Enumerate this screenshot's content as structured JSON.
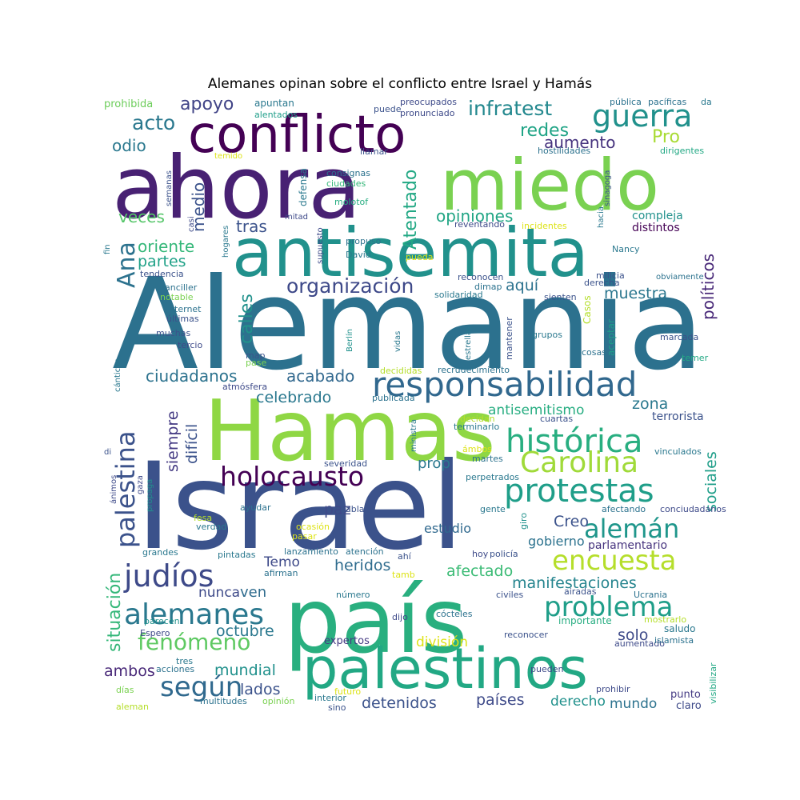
{
  "title": "Alemanes opinan sobre el conflicto entre Israel y Hamás",
  "words": [
    {
      "text": "Alemania",
      "color": "#2c718e"
    },
    {
      "text": "Israel",
      "color": "#3b528b"
    },
    {
      "text": "Hamas",
      "color": "#8fd744"
    },
    {
      "text": "país",
      "color": "#29af7f"
    },
    {
      "text": "ahora",
      "color": "#482173"
    },
    {
      "text": "miedo",
      "color": "#7ad151"
    },
    {
      "text": "antisemita",
      "color": "#21918c"
    },
    {
      "text": "conflicto",
      "color": "#440154"
    },
    {
      "text": "palestinos",
      "color": "#22a884"
    },
    {
      "text": "responsabilidad",
      "color": "#31688e"
    },
    {
      "text": "histórica",
      "color": "#28ae80"
    },
    {
      "text": "protestas",
      "color": "#1f9e89"
    },
    {
      "text": "Carolina",
      "color": "#a0da39"
    },
    {
      "text": "holocausto",
      "color": "#440154"
    },
    {
      "text": "judíos",
      "color": "#3e4a89"
    },
    {
      "text": "palestina",
      "color": "#3b528b"
    },
    {
      "text": "guerra",
      "color": "#21918c"
    },
    {
      "text": "alemanes",
      "color": "#2a788e"
    },
    {
      "text": "problema",
      "color": "#1f9e89"
    },
    {
      "text": "encuesta",
      "color": "#b5de2b"
    },
    {
      "text": "alemán",
      "color": "#1f968b"
    },
    {
      "text": "según",
      "color": "#30698e"
    },
    {
      "text": "fenómeno",
      "color": "#5ec962"
    },
    {
      "text": "organización",
      "color": "#3e4989"
    },
    {
      "text": "Ana",
      "color": "#2c728e"
    },
    {
      "text": "infratest",
      "color": "#23888e"
    },
    {
      "text": "acto",
      "color": "#2a788e"
    },
    {
      "text": "apoyo",
      "color": "#414487"
    },
    {
      "text": "redes",
      "color": "#20a486"
    },
    {
      "text": "aumento",
      "color": "#46337e"
    },
    {
      "text": "Pro",
      "color": "#a8db34"
    },
    {
      "text": "odio",
      "color": "#2a788e"
    },
    {
      "text": "Atentado",
      "color": "#22a884"
    },
    {
      "text": "opiniones",
      "color": "#21a585"
    },
    {
      "text": "veces",
      "color": "#54c568"
    },
    {
      "text": "medio",
      "color": "#3b528b"
    },
    {
      "text": "oriente",
      "color": "#35b779"
    },
    {
      "text": "partes",
      "color": "#1fa187"
    },
    {
      "text": "tras",
      "color": "#3b528b"
    },
    {
      "text": "calles",
      "color": "#21918c"
    },
    {
      "text": "políticos",
      "color": "#482878"
    },
    {
      "text": "aquí",
      "color": "#2c728e"
    },
    {
      "text": "muestra",
      "color": "#2a768e"
    },
    {
      "text": "compleja",
      "color": "#21918c"
    },
    {
      "text": "distintos",
      "color": "#440154"
    },
    {
      "text": "ciudadanos",
      "color": "#2c728e"
    },
    {
      "text": "acabado",
      "color": "#31688e"
    },
    {
      "text": "celebrado",
      "color": "#2a788e"
    },
    {
      "text": "siempre",
      "color": "#443a83"
    },
    {
      "text": "difícil",
      "color": "#3b528b"
    },
    {
      "text": "antisemitismo",
      "color": "#27ad81"
    },
    {
      "text": "zona",
      "color": "#2a788e"
    },
    {
      "text": "terrorista",
      "color": "#3b528b"
    },
    {
      "text": "prop",
      "color": "#2a788e"
    },
    {
      "text": "sociales",
      "color": "#1f9e89"
    },
    {
      "text": "paz",
      "color": "#3e4a89"
    },
    {
      "text": "Creo",
      "color": "#3b528b"
    },
    {
      "text": "estudio",
      "color": "#30698e"
    },
    {
      "text": "gobierno",
      "color": "#2c728e"
    },
    {
      "text": "parlamentario",
      "color": "#46337e"
    },
    {
      "text": "situación",
      "color": "#35b779"
    },
    {
      "text": "Temo",
      "color": "#3e4a89"
    },
    {
      "text": "heridos",
      "color": "#2f6c8e"
    },
    {
      "text": "afectado",
      "color": "#3bbb75"
    },
    {
      "text": "manifestaciones",
      "color": "#25848e"
    },
    {
      "text": "nunca",
      "color": "#3e4a89"
    },
    {
      "text": "ven",
      "color": "#2f6c8e"
    },
    {
      "text": "octubre",
      "color": "#2a788e"
    },
    {
      "text": "división",
      "color": "#dde318"
    },
    {
      "text": "solo",
      "color": "#3e4a89"
    },
    {
      "text": "ambos",
      "color": "#482878"
    },
    {
      "text": "mundial",
      "color": "#21918c"
    },
    {
      "text": "lados",
      "color": "#3b528b"
    },
    {
      "text": "expertos",
      "color": "#443a83"
    },
    {
      "text": "detenidos",
      "color": "#3b528b"
    },
    {
      "text": "países",
      "color": "#3e4a89"
    },
    {
      "text": "derecho",
      "color": "#21918c"
    },
    {
      "text": "mundo",
      "color": "#2c728e"
    },
    {
      "text": "claro",
      "color": "#3e4a89"
    },
    {
      "text": "punto",
      "color": "#443a83"
    },
    {
      "text": "prohibida",
      "color": "#6ccd5a"
    },
    {
      "text": "apuntan",
      "color": "#2a788e"
    },
    {
      "text": "alentados",
      "color": "#1f9e89"
    },
    {
      "text": "preocupados",
      "color": "#3e4a89"
    },
    {
      "text": "pronunciado",
      "color": "#3e4a89"
    },
    {
      "text": "puede",
      "color": "#3b528b"
    },
    {
      "text": "pública",
      "color": "#2c728e"
    },
    {
      "text": "pacíficas",
      "color": "#2c728e"
    },
    {
      "text": "da",
      "color": "#2a788e"
    },
    {
      "text": "hostilidades",
      "color": "#2c728e"
    },
    {
      "text": "dirigentes",
      "color": "#22a884"
    },
    {
      "text": "llamar",
      "color": "#3b528b"
    },
    {
      "text": "temido",
      "color": "#dde318"
    },
    {
      "text": "consignas",
      "color": "#2c728e"
    },
    {
      "text": "ciudades",
      "color": "#35b779"
    },
    {
      "text": "defensa",
      "color": "#2a788e"
    },
    {
      "text": "molotof",
      "color": "#27ad81"
    },
    {
      "text": "semanas",
      "color": "#3b528b"
    },
    {
      "text": "hacia",
      "color": "#2a788e"
    },
    {
      "text": "sinagoga",
      "color": "#3b528b"
    },
    {
      "text": "obviamente",
      "color": "#2c728e"
    },
    {
      "text": "reventando",
      "color": "#3e4a89"
    },
    {
      "text": "incidentes",
      "color": "#dde318"
    },
    {
      "text": "mitad",
      "color": "#3e4a89"
    },
    {
      "text": "casi",
      "color": "#3e4a89"
    },
    {
      "text": "supuesto",
      "color": "#3e4a89"
    },
    {
      "text": "propuso",
      "color": "#2c728e"
    },
    {
      "text": "David",
      "color": "#2a788e"
    },
    {
      "text": "pueda",
      "color": "#dde318"
    },
    {
      "text": "Nancy",
      "color": "#2a788e"
    },
    {
      "text": "hogares",
      "color": "#2a788e"
    },
    {
      "text": "fin",
      "color": "#2a788e"
    },
    {
      "text": "tendencia",
      "color": "#3b528b"
    },
    {
      "text": "canciller",
      "color": "#2c728e"
    },
    {
      "text": "notable",
      "color": "#7ad151"
    },
    {
      "text": "internet",
      "color": "#2c728e"
    },
    {
      "text": "últimas",
      "color": "#3b528b"
    },
    {
      "text": "muchas",
      "color": "#3b528b"
    },
    {
      "text": "tercio",
      "color": "#3e4a89"
    },
    {
      "text": "reconocen",
      "color": "#3b528b"
    },
    {
      "text": "dimap",
      "color": "#2c728e"
    },
    {
      "text": "solidaridad",
      "color": "#2a788e"
    },
    {
      "text": "milicia",
      "color": "#3b528b"
    },
    {
      "text": "derecha",
      "color": "#3b528b"
    },
    {
      "text": "sienten",
      "color": "#3b528b"
    },
    {
      "text": "Casos",
      "color": "#b5de2b"
    },
    {
      "text": "aceptar",
      "color": "#1f9e89"
    },
    {
      "text": "grupos",
      "color": "#2a788e"
    },
    {
      "text": "mantener",
      "color": "#3b528b"
    },
    {
      "text": "cosas",
      "color": "#2c728e"
    },
    {
      "text": "marcada",
      "color": "#3b528b"
    },
    {
      "text": "temer",
      "color": "#22a884"
    },
    {
      "text": "vidas",
      "color": "#2a788e"
    },
    {
      "text": "estrellas",
      "color": "#2a788e"
    },
    {
      "text": "Berlín",
      "color": "#21918c"
    },
    {
      "text": "map",
      "color": "#3b528b"
    },
    {
      "text": "pase",
      "color": "#7ad151"
    },
    {
      "text": "decididas",
      "color": "#b5de2b"
    },
    {
      "text": "recrudecimiento",
      "color": "#2c728e"
    },
    {
      "text": "cánticos",
      "color": "#2a788e"
    },
    {
      "text": "atmósfera",
      "color": "#3e4a89"
    },
    {
      "text": "publicada",
      "color": "#2c728e"
    },
    {
      "text": "ministra",
      "color": "#2a788e"
    },
    {
      "text": "decidan",
      "color": "#b5de2b"
    },
    {
      "text": "terminarlo",
      "color": "#2a788e"
    },
    {
      "text": "cuartas",
      "color": "#3b528b"
    },
    {
      "text": "di",
      "color": "#3b528b"
    },
    {
      "text": "ámbos",
      "color": "#dde318"
    },
    {
      "text": "martes",
      "color": "#2c728e"
    },
    {
      "text": "vinculados",
      "color": "#2a788e"
    },
    {
      "text": "ánimos",
      "color": "#3e4a89"
    },
    {
      "text": "gaza",
      "color": "#3e4a89"
    },
    {
      "text": "severidad",
      "color": "#3b528b"
    },
    {
      "text": "perpetrados",
      "color": "#2a788e"
    },
    {
      "text": "propaga",
      "color": "#21918c"
    },
    {
      "text": "habla",
      "color": "#3b528b"
    },
    {
      "text": "gente",
      "color": "#2a788e"
    },
    {
      "text": "giro",
      "color": "#21918c"
    },
    {
      "text": "afectando",
      "color": "#2c728e"
    },
    {
      "text": "conciudadanos",
      "color": "#3e4a89"
    },
    {
      "text": "ayudar",
      "color": "#2c728e"
    },
    {
      "text": "fesa",
      "color": "#b5de2b"
    },
    {
      "text": "verdad",
      "color": "#2a788e"
    },
    {
      "text": "ocasión",
      "color": "#dde318"
    },
    {
      "text": "pasar",
      "color": "#dde318"
    },
    {
      "text": "grandes",
      "color": "#2a788e"
    },
    {
      "text": "pintadas",
      "color": "#2a788e"
    },
    {
      "text": "lanzamiento",
      "color": "#2c728e"
    },
    {
      "text": "atención",
      "color": "#2c728e"
    },
    {
      "text": "ahí",
      "color": "#3b528b"
    },
    {
      "text": "hoy",
      "color": "#3e4a89"
    },
    {
      "text": "policía",
      "color": "#3b528b"
    },
    {
      "text": "afirman",
      "color": "#2c728e"
    },
    {
      "text": "tamb",
      "color": "#dde318"
    },
    {
      "text": "número",
      "color": "#2a788e"
    },
    {
      "text": "civiles",
      "color": "#3b528b"
    },
    {
      "text": "airadas",
      "color": "#3b528b"
    },
    {
      "text": "Ucrania",
      "color": "#2c728e"
    },
    {
      "text": "dijo",
      "color": "#3e4a89"
    },
    {
      "text": "cócteles",
      "color": "#2c728e"
    },
    {
      "text": "importante",
      "color": "#27ad81"
    },
    {
      "text": "mostrarlo",
      "color": "#b5de2b"
    },
    {
      "text": "parecen",
      "color": "#21918c"
    },
    {
      "text": "Espero",
      "color": "#3e4a89"
    },
    {
      "text": "reconocer",
      "color": "#3b528b"
    },
    {
      "text": "saludo",
      "color": "#2a788e"
    },
    {
      "text": "aumentado",
      "color": "#3e4a89"
    },
    {
      "text": "islamista",
      "color": "#2c728e"
    },
    {
      "text": "tres",
      "color": "#2a788e"
    },
    {
      "text": "acciones",
      "color": "#2c728e"
    },
    {
      "text": "días",
      "color": "#7ad151"
    },
    {
      "text": "pueden",
      "color": "#3e4a89"
    },
    {
      "text": "visibilizar",
      "color": "#22a884"
    },
    {
      "text": "futuro",
      "color": "#dde318"
    },
    {
      "text": "interior",
      "color": "#2a788e"
    },
    {
      "text": "prohibir",
      "color": "#3e4a89"
    },
    {
      "text": "multitudes",
      "color": "#2c728e"
    },
    {
      "text": "opinión",
      "color": "#7ad151"
    },
    {
      "text": "sino",
      "color": "#3b528b"
    },
    {
      "text": "aleman",
      "color": "#b5de2b"
    }
  ]
}
